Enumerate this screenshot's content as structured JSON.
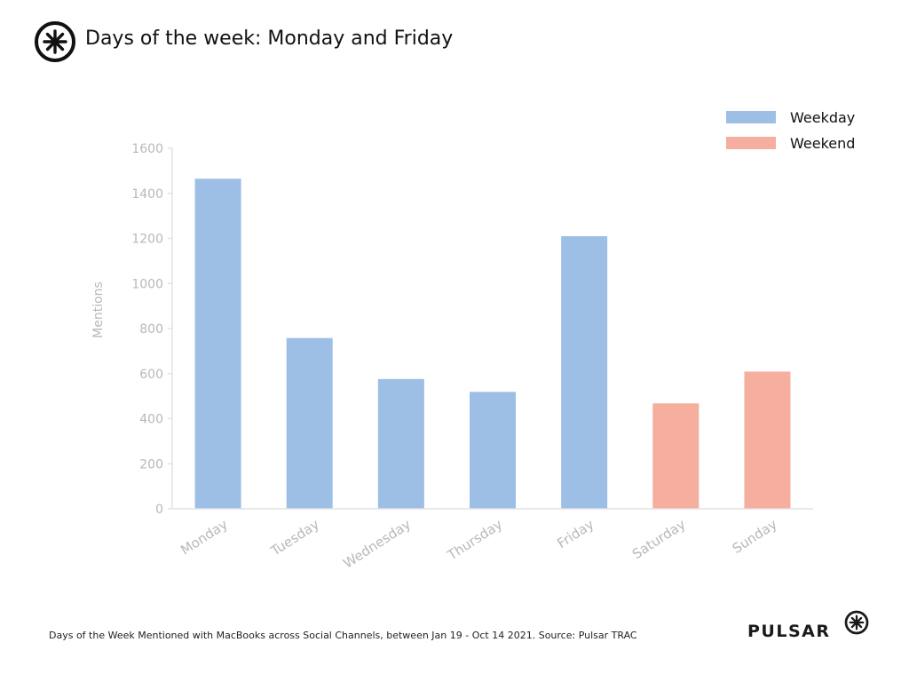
{
  "header": {
    "title": "Days of the week: Monday and Friday"
  },
  "footer": {
    "note": "Days of the Week Mentioned with MacBooks across Social Channels, between Jan 19 - Oct 14 2021. Source: Pulsar TRAC",
    "brand": "PULSAR"
  },
  "icons": {
    "logo": "asterisk-circle-icon",
    "brand_mark": "asterisk-circle-icon"
  },
  "colors": {
    "weekday": "#9dbfe6",
    "weekend": "#f6ae9f",
    "axis_text": "#b8b8b8",
    "axis_line": "#e3e3e3"
  },
  "chart_data": {
    "type": "bar",
    "title": "",
    "xlabel": "",
    "ylabel": "Mentions",
    "ylim": [
      0,
      1600
    ],
    "yticks": [
      0,
      200,
      400,
      600,
      800,
      1000,
      1200,
      1400,
      1600
    ],
    "categories": [
      "Monday",
      "Tuesday",
      "Wednesday",
      "Thursday",
      "Friday",
      "Saturday",
      "Sunday"
    ],
    "series": [
      {
        "name": "Weekday",
        "values": [
          1465,
          758,
          576,
          519,
          1210,
          null,
          null
        ]
      },
      {
        "name": "Weekend",
        "values": [
          null,
          null,
          null,
          null,
          null,
          468,
          609
        ]
      }
    ],
    "legend": {
      "placement": "top-right",
      "entries": [
        "Weekday",
        "Weekend"
      ]
    },
    "grid": false
  }
}
